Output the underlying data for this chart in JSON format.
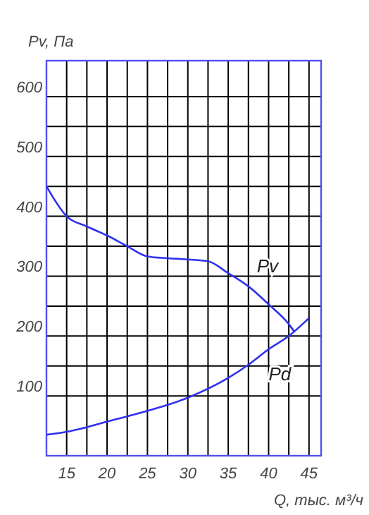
{
  "chart_data": {
    "type": "line",
    "xlabel": "Q, тыс. м³/ч",
    "ylabel": "Pv, Па",
    "xlim": [
      12.5,
      46.5
    ],
    "ylim": [
      0,
      660
    ],
    "xticks": [
      15,
      {
        "value": 17.5,
        "label": null
      },
      20,
      {
        "value": 22.5,
        "label": null
      },
      25,
      {
        "value": 27.5,
        "label": null
      },
      30,
      {
        "value": 32.5,
        "label": null
      },
      35,
      {
        "value": 37.5,
        "label": null
      },
      40,
      {
        "value": 42.5,
        "label": null
      },
      45
    ],
    "yticks": [
      100,
      {
        "value": 150,
        "label": null
      },
      200,
      {
        "value": 250,
        "label": null
      },
      300,
      {
        "value": 350,
        "label": null
      },
      400,
      {
        "value": 450,
        "label": null
      },
      500,
      {
        "value": 550,
        "label": null
      },
      600
    ],
    "grid": true,
    "series": [
      {
        "name": "Pv",
        "color": "#3030f0",
        "x": [
          12.5,
          15,
          17.5,
          20,
          22.5,
          25,
          27.5,
          30,
          32.5,
          35,
          37.5,
          40,
          42.5,
          43.2
        ],
        "values": [
          450,
          400,
          383,
          368,
          350,
          333,
          330,
          328,
          325,
          305,
          283,
          253,
          220,
          207
        ]
      },
      {
        "name": "Pd",
        "color": "#3030f0",
        "x": [
          12.5,
          15,
          20,
          25,
          30,
          35,
          37.5,
          40,
          42.5,
          45
        ],
        "values": [
          35,
          40,
          57,
          75,
          97,
          130,
          152,
          178,
          200,
          230
        ]
      }
    ]
  }
}
